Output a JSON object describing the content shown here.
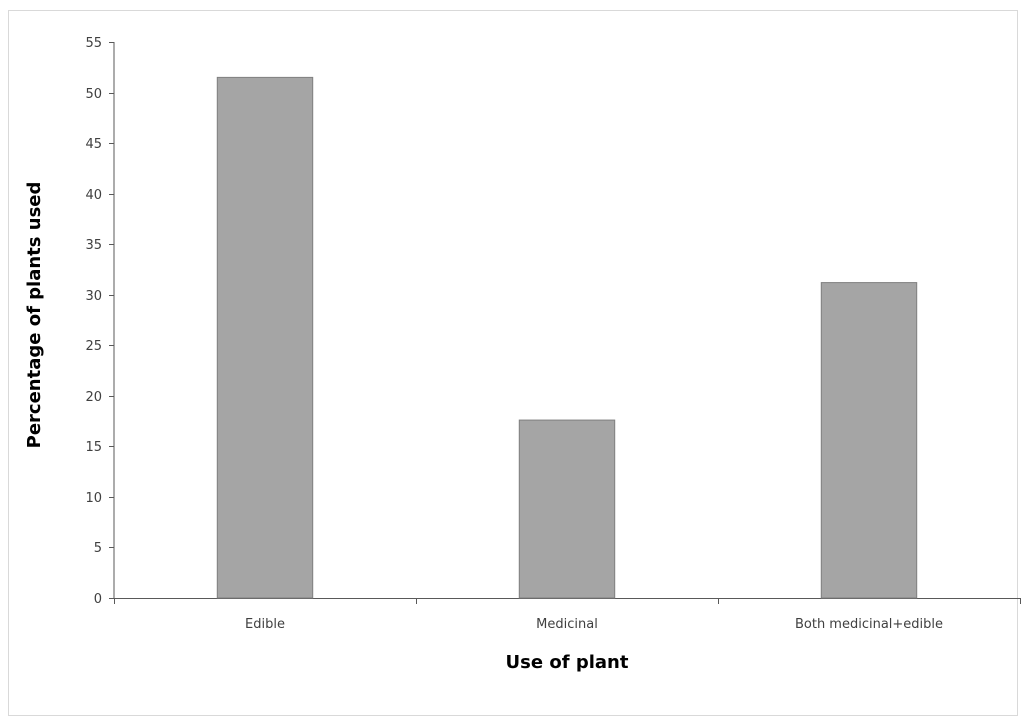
{
  "chart_data": {
    "type": "bar",
    "title": "",
    "xlabel": "Use of plant",
    "ylabel": "Percentage of plants used",
    "categories": [
      "Edible",
      "Medicinal",
      "Both medicinal+edible"
    ],
    "values": [
      51.5,
      17.6,
      31.2
    ],
    "ylim": [
      0,
      55
    ],
    "yticks": [
      0,
      5,
      10,
      15,
      20,
      25,
      30,
      35,
      40,
      45,
      50,
      55
    ],
    "grid": false,
    "legend": "none",
    "bar_color": "#a5a5a5",
    "bar_edge_color": "#7f7f7f",
    "axis_color": "#595959"
  }
}
